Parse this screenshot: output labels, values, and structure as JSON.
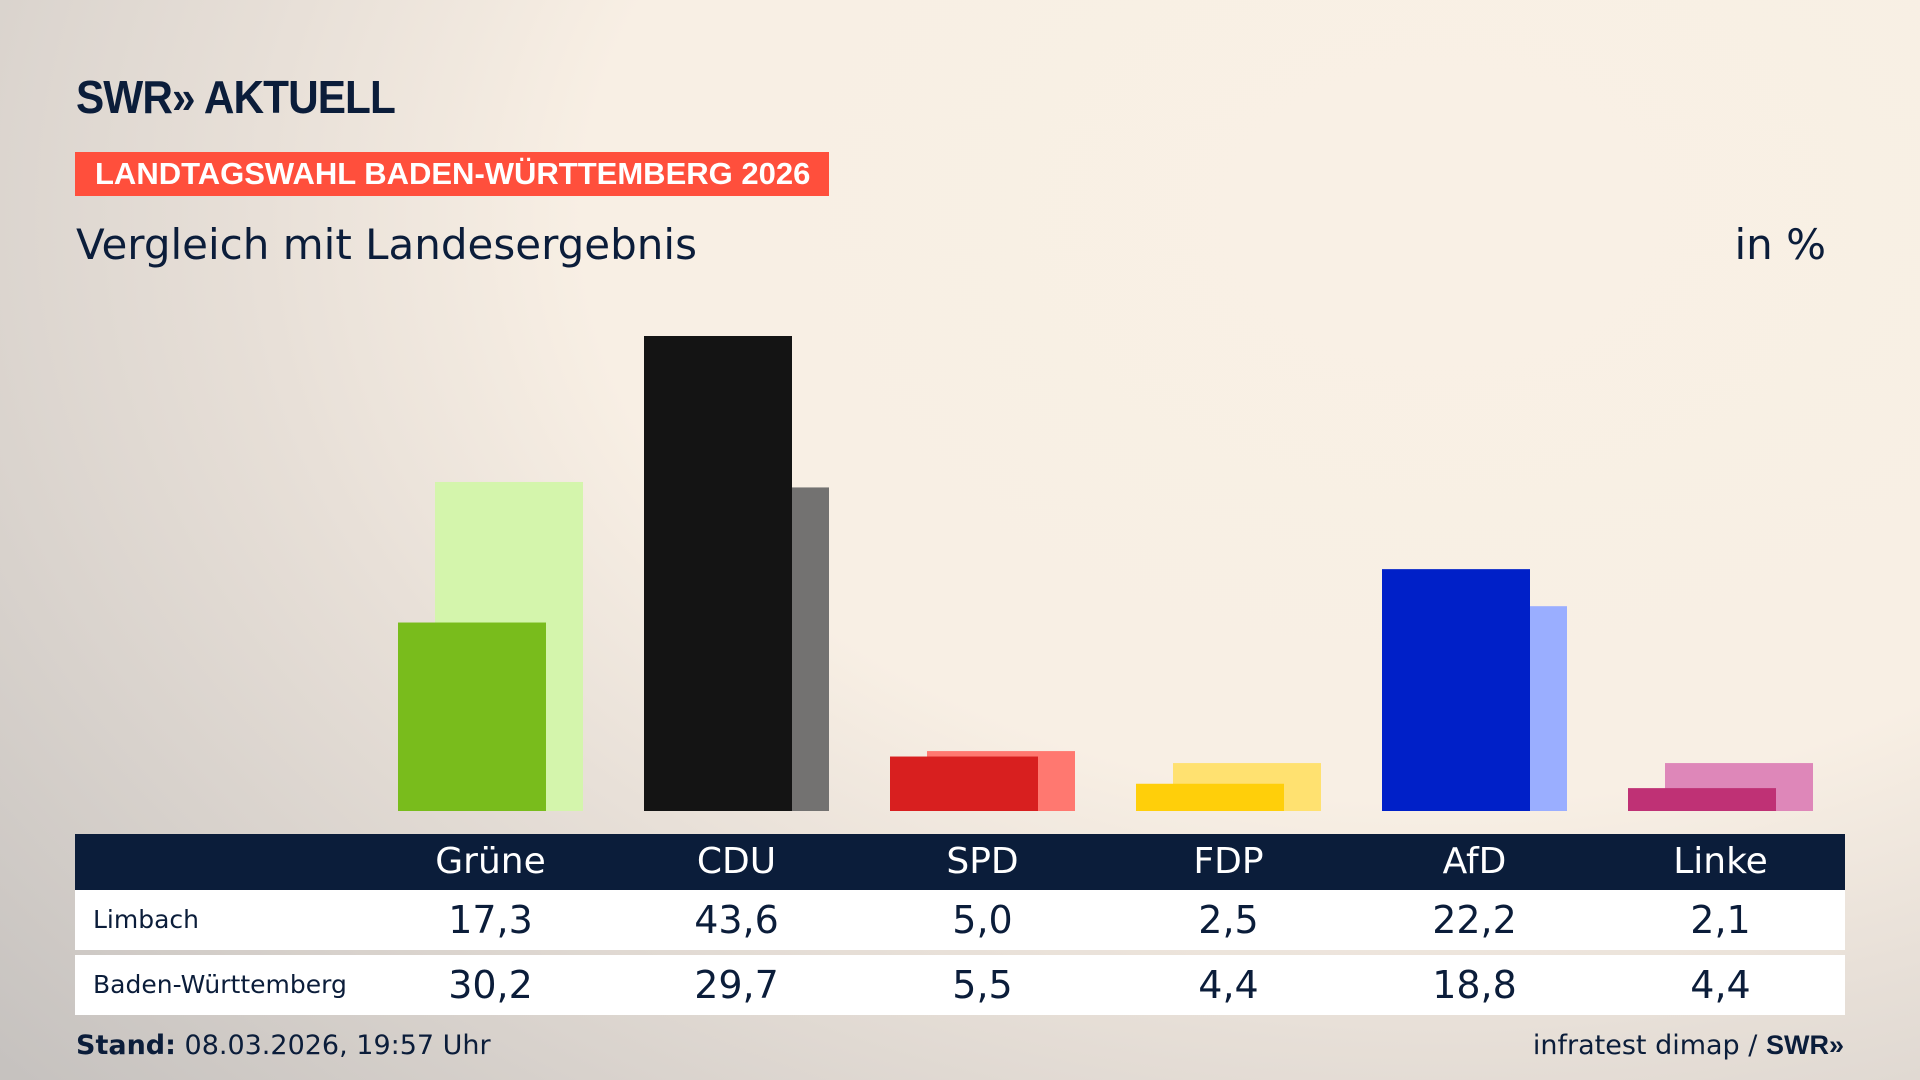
{
  "header": {
    "logo": "SWR» AKTUELL",
    "banner": "LANDTAGSWAHL BADEN-WÜRTTEMBERG 2026",
    "subtitle": "Vergleich mit Landesergebnis",
    "unit": "in %"
  },
  "chart_data": {
    "type": "bar",
    "categories": [
      "Grüne",
      "CDU",
      "SPD",
      "FDP",
      "AfD",
      "Linke"
    ],
    "series": [
      {
        "name": "Limbach",
        "values": [
          17.3,
          43.6,
          5.0,
          2.5,
          22.2,
          2.1
        ],
        "colors": [
          "#79bc1c",
          "#141414",
          "#d81f1f",
          "#ffcf0a",
          "#0020c8",
          "#bf3175"
        ]
      },
      {
        "name": "Baden-Württemberg",
        "values": [
          30.2,
          29.7,
          5.5,
          4.4,
          18.8,
          4.4
        ],
        "colors": [
          "#d4f5ac",
          "#737271",
          "#ff7870",
          "#ffe170",
          "#9aaeff",
          "#de87b9"
        ]
      }
    ],
    "display_values": [
      [
        "17,3",
        "43,6",
        "5,0",
        "2,5",
        "22,2",
        "2,1"
      ],
      [
        "30,2",
        "29,7",
        "5,5",
        "4,4",
        "18,8",
        "4,4"
      ]
    ],
    "ylim": [
      0,
      43.6
    ]
  },
  "footer": {
    "stand_label": "Stand:",
    "stand_value": "08.03.2026, 19:57 Uhr",
    "source": "infratest dimap /",
    "source_logo": "SWR»"
  }
}
